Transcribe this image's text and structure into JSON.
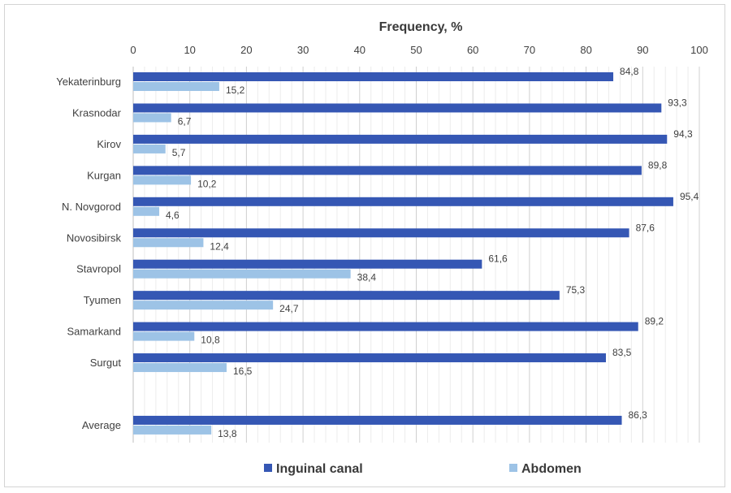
{
  "chart_data": {
    "type": "bar",
    "orientation": "horizontal",
    "title": "",
    "xlabel": "Frequency, %",
    "ylabel": "",
    "xlim": [
      0,
      100
    ],
    "xticks": [
      "0",
      "10",
      "20",
      "30",
      "40",
      "50",
      "60",
      "70",
      "80",
      "90",
      "100"
    ],
    "grid": true,
    "legend_position": "bottom",
    "categories": [
      "Yekaterinburg",
      "Krasnodar",
      "Kirov",
      "Kurgan",
      "N. Novgorod",
      "Novosibirsk",
      "Stavropol",
      "Tyumen",
      "Samarkand",
      "Surgut",
      "",
      "Average"
    ],
    "series": [
      {
        "name": "Inguinal canal",
        "color": "#3557b4",
        "values": [
          84.8,
          93.3,
          94.3,
          89.8,
          95.4,
          87.6,
          61.6,
          75.3,
          89.2,
          83.5,
          null,
          86.3
        ],
        "labels": [
          "84,8",
          "93,3",
          "94,3",
          "89,8",
          "95,4",
          "87,6",
          "61,6",
          "75,3",
          "89,2",
          "83,5",
          "",
          "86,3"
        ]
      },
      {
        "name": "Abdomen",
        "color": "#9dc3e6",
        "values": [
          15.2,
          6.7,
          5.7,
          10.2,
          4.6,
          12.4,
          38.4,
          24.7,
          10.8,
          16.5,
          null,
          13.8
        ],
        "labels": [
          "15,2",
          "6,7",
          "5,7",
          "10,2",
          "4,6",
          "12,4",
          "38,4",
          "24,7",
          "10,8",
          "16,5",
          "",
          "13,8"
        ]
      }
    ]
  }
}
